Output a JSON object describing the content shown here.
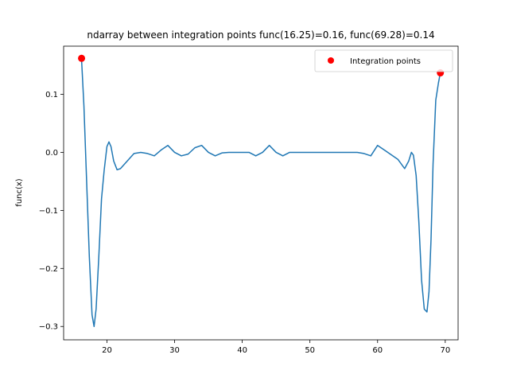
{
  "chart_data": {
    "type": "line",
    "title": "ndarray between integration points func(16.25)=0.16, func(69.28)=0.14",
    "xlabel": "",
    "ylabel": "func(x)",
    "xlim": [
      13.6,
      71.9
    ],
    "ylim": [
      -0.323,
      0.183
    ],
    "xticks": [
      20,
      30,
      40,
      50,
      60,
      70
    ],
    "yticks": [
      -0.3,
      -0.2,
      -0.1,
      0.0,
      0.1
    ],
    "ytick_labels": [
      "−0.3",
      "−0.2",
      "−0.1",
      "0.0",
      "0.1"
    ],
    "grid": false,
    "legend_position": "top-right",
    "series": [
      {
        "name": "",
        "color": "#1f77b4",
        "x": [
          16.25,
          16.6,
          17.0,
          17.4,
          17.8,
          18.1,
          18.4,
          18.8,
          19.2,
          19.6,
          20.0,
          20.3,
          20.6,
          21.0,
          21.5,
          22.0,
          23.0,
          24.0,
          25.0,
          26.0,
          27.0,
          28.0,
          29.0,
          30.0,
          31.0,
          32.0,
          33.0,
          34.0,
          35.0,
          36.0,
          37.0,
          38.0,
          39.0,
          40.0,
          41.0,
          42.0,
          43.0,
          44.0,
          45.0,
          46.0,
          47.0,
          48.0,
          50.0,
          52.0,
          54.0,
          56.0,
          57.0,
          58.0,
          59.0,
          60.0,
          61.0,
          62.0,
          63.0,
          64.0,
          64.6,
          65.0,
          65.3,
          65.7,
          66.1,
          66.5,
          66.9,
          67.3,
          67.6,
          67.9,
          68.2,
          68.6,
          69.0,
          69.28
        ],
        "y": [
          0.16,
          0.08,
          -0.05,
          -0.18,
          -0.28,
          -0.3,
          -0.27,
          -0.18,
          -0.08,
          -0.03,
          0.01,
          0.018,
          0.01,
          -0.015,
          -0.03,
          -0.028,
          -0.015,
          -0.002,
          0.0,
          -0.002,
          -0.006,
          0.004,
          0.012,
          0.0,
          -0.006,
          -0.003,
          0.008,
          0.012,
          0.0,
          -0.006,
          -0.001,
          0.0,
          0.0,
          0.0,
          0.0,
          -0.006,
          0.0,
          0.012,
          0.0,
          -0.006,
          0.0,
          0.0,
          0.0,
          0.0,
          0.0,
          0.0,
          0.0,
          -0.002,
          -0.006,
          0.012,
          0.004,
          -0.004,
          -0.012,
          -0.028,
          -0.015,
          0.0,
          -0.005,
          -0.04,
          -0.12,
          -0.22,
          -0.27,
          -0.275,
          -0.24,
          -0.15,
          -0.02,
          0.09,
          0.12,
          0.137
        ]
      }
    ],
    "points": {
      "name": "Integration points",
      "color": "#ff0000",
      "x": [
        16.25,
        69.28
      ],
      "y": [
        0.162,
        0.137
      ]
    }
  }
}
